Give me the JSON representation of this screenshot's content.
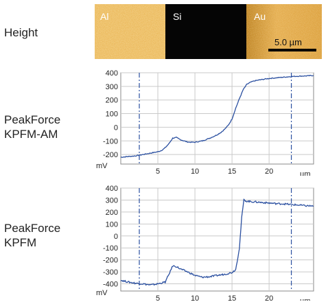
{
  "labels": {
    "height": "Height",
    "am_line1": "PeakForce",
    "am_line2": "KPFM-AM",
    "kpfm_line1": "PeakForce",
    "kpfm_line2": "KPFM"
  },
  "afm_image": {
    "materials": [
      "Al",
      "Si",
      "Au"
    ],
    "scale_bar": "5.0 µm",
    "colors": {
      "al": "#e8b04a",
      "si": "#050505",
      "au": "#dc9a2a"
    }
  },
  "chart_data": [
    {
      "type": "line",
      "name": "PeakForce KPFM-AM",
      "xlim": [
        0,
        26
      ],
      "ylim": [
        -270,
        400
      ],
      "xticks": [
        5,
        10,
        15,
        20
      ],
      "yticks": [
        400,
        300,
        200,
        100,
        0,
        -100,
        -200
      ],
      "xunit": "µm",
      "yunit": "mV",
      "grid": true,
      "markers": [
        2.5,
        23
      ],
      "color": "#2a4fa0",
      "series": [
        {
          "x": [
            0,
            1,
            2,
            3,
            4,
            5,
            5.5,
            6,
            6.5,
            7,
            7.5,
            8,
            8.5,
            9,
            9.5,
            10,
            10.5,
            11,
            11.5,
            12,
            12.5,
            13,
            13.5,
            14,
            14.5,
            15,
            15.5,
            16,
            16.5,
            17,
            17.5,
            18,
            19,
            20,
            21,
            22,
            23,
            24,
            25,
            26
          ],
          "values": [
            -220,
            -215,
            -210,
            -200,
            -190,
            -180,
            -170,
            -150,
            -120,
            -80,
            -75,
            -90,
            -100,
            -108,
            -110,
            -110,
            -105,
            -100,
            -90,
            -80,
            -68,
            -55,
            -38,
            -15,
            15,
            60,
            140,
            210,
            275,
            315,
            330,
            340,
            350,
            358,
            363,
            368,
            372,
            375,
            377,
            380
          ]
        }
      ]
    },
    {
      "type": "line",
      "name": "PeakForce KPFM",
      "xlim": [
        0,
        26
      ],
      "ylim": [
        -460,
        400
      ],
      "xticks": [
        5,
        10,
        15,
        20
      ],
      "yticks": [
        400,
        300,
        200,
        100,
        0,
        -100,
        -200,
        -300,
        -400
      ],
      "xunit": "µm",
      "yunit": "mV",
      "grid": true,
      "markers": [
        2.5,
        23
      ],
      "color": "#2a4fa0",
      "series": [
        {
          "x": [
            0,
            1,
            2,
            3,
            4,
            5,
            6,
            6.5,
            7,
            7.5,
            8,
            9,
            10,
            11,
            12,
            13,
            14,
            15,
            15.5,
            16,
            16.3,
            16.6,
            17,
            18,
            19,
            20,
            21,
            22,
            23,
            24,
            25,
            26
          ],
          "values": [
            -370,
            -385,
            -395,
            -400,
            -410,
            -400,
            -385,
            -320,
            -250,
            -255,
            -275,
            -300,
            -330,
            -345,
            -340,
            -330,
            -320,
            -305,
            -280,
            -100,
            150,
            300,
            290,
            285,
            280,
            275,
            270,
            268,
            262,
            258,
            252,
            250
          ]
        }
      ]
    }
  ]
}
